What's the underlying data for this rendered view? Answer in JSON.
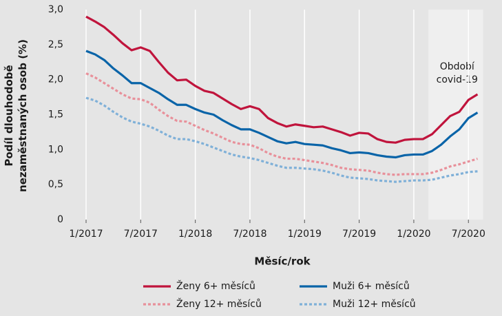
{
  "chart_data": {
    "type": "line",
    "ylabel": [
      "Podíl dlouhodobě",
      "nezaměstnaných osob (%)"
    ],
    "xlabel": "Měsíc/rok",
    "highlight_label": [
      "Období",
      "covid-19"
    ],
    "categories": [
      "1/2017",
      null,
      null,
      null,
      null,
      null,
      "7/2017",
      null,
      null,
      null,
      null,
      null,
      "1/2018",
      null,
      null,
      null,
      null,
      null,
      "7/2018",
      null,
      null,
      null,
      null,
      null,
      "1/2019",
      null,
      null,
      null,
      null,
      null,
      "7/2019",
      null,
      null,
      null,
      null,
      null,
      "1/2020",
      null,
      null,
      null,
      null,
      null,
      "7/2020",
      null
    ],
    "ylim": [
      0,
      3
    ],
    "yticks": [
      0,
      {
        "value": 0.5,
        "label": "0,5"
      },
      {
        "value": 1,
        "label": "1,0"
      },
      {
        "value": 1.5,
        "label": "1,5"
      },
      {
        "value": 2,
        "label": "2,0"
      },
      {
        "value": 2.5,
        "label": "2,5"
      },
      {
        "value": 3,
        "label": "3,0"
      }
    ],
    "grid": true,
    "series": [
      {
        "name": "Ženy 6+ měsíců",
        "color": "#c0143c",
        "dashed": false,
        "values": [
          2.9,
          2.83,
          2.75,
          2.64,
          2.52,
          2.42,
          2.46,
          2.41,
          2.25,
          2.1,
          1.99,
          2.0,
          1.91,
          1.84,
          1.81,
          1.73,
          1.65,
          1.58,
          1.62,
          1.58,
          1.45,
          1.38,
          1.33,
          1.36,
          1.34,
          1.32,
          1.33,
          1.29,
          1.25,
          1.2,
          1.24,
          1.23,
          1.15,
          1.11,
          1.1,
          1.14,
          1.15,
          1.15,
          1.22,
          1.35,
          1.48,
          1.54,
          1.71,
          1.79
        ]
      },
      {
        "name": "Muži 6+ měsíců",
        "color": "#0a64a8",
        "dashed": false,
        "values": [
          2.41,
          2.36,
          2.28,
          2.16,
          2.06,
          1.95,
          1.95,
          1.88,
          1.81,
          1.72,
          1.64,
          1.64,
          1.58,
          1.53,
          1.5,
          1.42,
          1.35,
          1.29,
          1.29,
          1.24,
          1.18,
          1.12,
          1.09,
          1.11,
          1.08,
          1.07,
          1.06,
          1.02,
          0.99,
          0.95,
          0.96,
          0.95,
          0.92,
          0.9,
          0.89,
          0.92,
          0.93,
          0.93,
          0.98,
          1.07,
          1.19,
          1.29,
          1.45,
          1.53
        ]
      },
      {
        "name": "Ženy 12+ měsíců",
        "color": "#e8909a",
        "dashed": true,
        "values": [
          2.09,
          2.03,
          1.95,
          1.87,
          1.79,
          1.73,
          1.72,
          1.67,
          1.57,
          1.48,
          1.41,
          1.4,
          1.34,
          1.28,
          1.23,
          1.17,
          1.11,
          1.08,
          1.07,
          1.02,
          0.95,
          0.9,
          0.87,
          0.87,
          0.85,
          0.83,
          0.81,
          0.78,
          0.74,
          0.72,
          0.71,
          0.7,
          0.67,
          0.65,
          0.64,
          0.65,
          0.65,
          0.65,
          0.67,
          0.71,
          0.76,
          0.79,
          0.83,
          0.87
        ]
      },
      {
        "name": "Muži 12+ měsíců",
        "color": "#7fb0d8",
        "dashed": true,
        "values": [
          1.74,
          1.7,
          1.63,
          1.54,
          1.46,
          1.4,
          1.37,
          1.33,
          1.27,
          1.2,
          1.15,
          1.15,
          1.12,
          1.08,
          1.03,
          0.98,
          0.93,
          0.9,
          0.88,
          0.85,
          0.81,
          0.77,
          0.74,
          0.74,
          0.73,
          0.72,
          0.7,
          0.67,
          0.63,
          0.6,
          0.59,
          0.58,
          0.56,
          0.55,
          0.54,
          0.55,
          0.56,
          0.56,
          0.57,
          0.6,
          0.63,
          0.65,
          0.68,
          0.69
        ]
      }
    ]
  }
}
